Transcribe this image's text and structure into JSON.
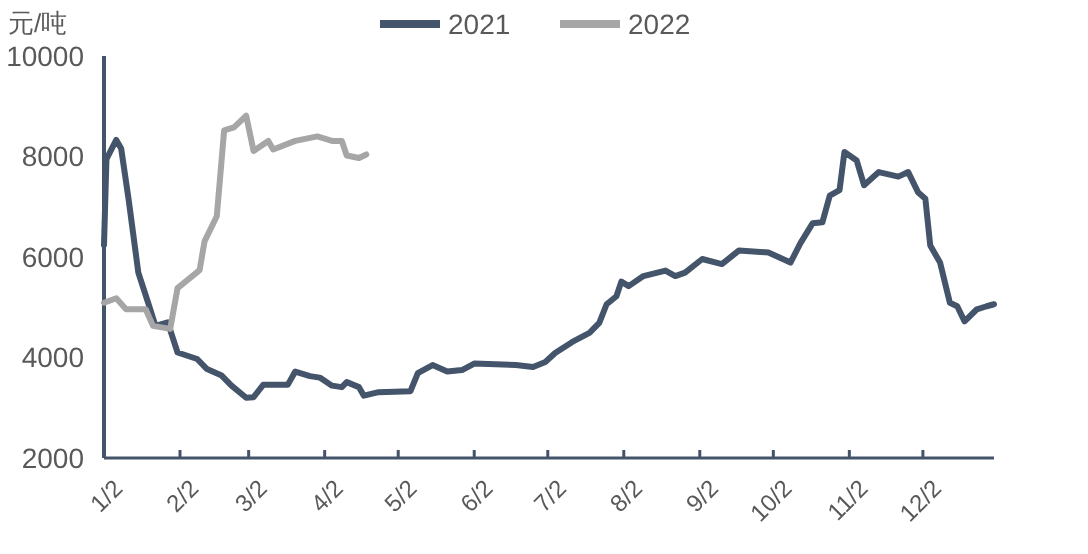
{
  "chart_data": {
    "type": "line",
    "ylabel": "元/吨",
    "legend": "top",
    "grid": false,
    "line_style": "solid",
    "marker": "none",
    "xlim": [
      "--01-02",
      "--12-31"
    ],
    "xticks": [
      {
        "value": "--01-02",
        "label": "1/2"
      },
      {
        "value": "--02-02",
        "label": "2/2"
      },
      {
        "value": "--03-02",
        "label": "3/2"
      },
      {
        "value": "--04-02",
        "label": "4/2"
      },
      {
        "value": "--05-02",
        "label": "5/2"
      },
      {
        "value": "--06-02",
        "label": "6/2"
      },
      {
        "value": "--07-02",
        "label": "7/2"
      },
      {
        "value": "--08-02",
        "label": "8/2"
      },
      {
        "value": "--09-02",
        "label": "9/2"
      },
      {
        "value": "--10-02",
        "label": "10/2"
      },
      {
        "value": "--11-02",
        "label": "11/2"
      },
      {
        "value": "--12-02",
        "label": "12/2"
      }
    ],
    "ylim": [
      2000,
      10000
    ],
    "yticks": [
      2000,
      4000,
      6000,
      8000,
      10000
    ],
    "series": [
      {
        "name": "2021",
        "color": "#44546a",
        "x": [
          "--01-02",
          "--01-03",
          "--01-07",
          "--01-09",
          "--01-12",
          "--01-16",
          "--01-20",
          "--01-23",
          "--01-28",
          "--02-01",
          "--02-09",
          "--02-13",
          "--02-19",
          "--02-23",
          "--03-01",
          "--03-04",
          "--03-08",
          "--03-18",
          "--03-21",
          "--03-27",
          "--03-31",
          "--04-05",
          "--04-09",
          "--04-11",
          "--04-16",
          "--04-18",
          "--04-24",
          "--05-07",
          "--05-10",
          "--05-16",
          "--05-22",
          "--05-28",
          "--06-02",
          "--06-19",
          "--06-26",
          "--07-01",
          "--07-05",
          "--07-12",
          "--07-19",
          "--07-23",
          "--07-26",
          "--07-30",
          "--08-01",
          "--08-04",
          "--08-10",
          "--08-19",
          "--08-23",
          "--08-27",
          "--09-03",
          "--09-11",
          "--09-18",
          "--09-30",
          "--10-09",
          "--10-13",
          "--10-18",
          "--10-22",
          "--10-25",
          "--10-29",
          "--10-31",
          "--11-05",
          "--11-08",
          "--11-14",
          "--11-22",
          "--11-26",
          "--11-30",
          "--12-03",
          "--12-05",
          "--12-09",
          "--12-13",
          "--12-16",
          "--12-19",
          "--12-24",
          "--12-28",
          "--12-31"
        ],
        "values": [
          6240,
          7950,
          8330,
          8160,
          7160,
          5690,
          5090,
          4630,
          4700,
          4100,
          3970,
          3770,
          3640,
          3440,
          3200,
          3210,
          3460,
          3460,
          3720,
          3630,
          3600,
          3440,
          3410,
          3510,
          3410,
          3240,
          3310,
          3330,
          3690,
          3850,
          3720,
          3750,
          3880,
          3850,
          3810,
          3910,
          4090,
          4310,
          4490,
          4690,
          5060,
          5220,
          5510,
          5420,
          5620,
          5730,
          5620,
          5690,
          5960,
          5860,
          6130,
          6090,
          5890,
          6270,
          6670,
          6690,
          7220,
          7330,
          8090,
          7920,
          7430,
          7690,
          7600,
          7690,
          7290,
          7160,
          6230,
          5890,
          5090,
          5020,
          4720,
          4960,
          5020,
          5060
        ]
      },
      {
        "name": "2022",
        "color": "#a6a6a6",
        "x": [
          "--01-02",
          "--01-07",
          "--01-11",
          "--01-19",
          "--01-22",
          "--01-29",
          "--02-01",
          "--02-10",
          "--02-12",
          "--02-17",
          "--02-20",
          "--02-24",
          "--03-01",
          "--03-04",
          "--03-10",
          "--03-12",
          "--03-21",
          "--03-30",
          "--04-05",
          "--04-09",
          "--04-11",
          "--04-16",
          "--04-19"
        ],
        "values": [
          5090,
          5180,
          4960,
          4960,
          4630,
          4570,
          5380,
          5740,
          6310,
          6810,
          8520,
          8580,
          8810,
          8110,
          8310,
          8140,
          8310,
          8400,
          8310,
          8310,
          8020,
          7970,
          8040
        ]
      }
    ]
  }
}
